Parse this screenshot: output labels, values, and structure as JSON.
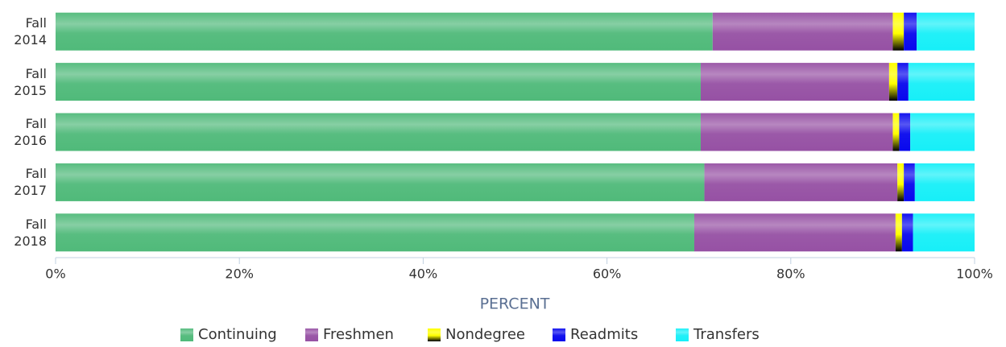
{
  "chart_data": {
    "type": "stacked-bar-horizontal",
    "categories": [
      "Fall 2014",
      "Fall 2015",
      "Fall 2016",
      "Fall 2017",
      "Fall 2018"
    ],
    "series": [
      {
        "name": "Continuing",
        "color": "#58bd80",
        "values": [
          71.5,
          70.2,
          70.2,
          70.6,
          69.5
        ]
      },
      {
        "name": "Freshmen",
        "color": "#9b59a8",
        "values": [
          19.6,
          20.5,
          20.9,
          21.0,
          21.9
        ]
      },
      {
        "name": "Nondegree",
        "color": "#ffff00",
        "values": [
          1.2,
          0.9,
          0.7,
          0.7,
          0.7
        ]
      },
      {
        "name": "Readmits",
        "color": "#1414ee",
        "values": [
          1.4,
          1.2,
          1.2,
          1.2,
          1.2
        ]
      },
      {
        "name": "Transfers",
        "color": "#22f0f8",
        "values": [
          6.3,
          7.2,
          7.0,
          6.5,
          6.7
        ]
      }
    ],
    "x_label": "PERCENT",
    "xlim": [
      0,
      100
    ],
    "xticks": [
      {
        "value": 0,
        "label": "0%"
      },
      {
        "value": 20,
        "label": "20%"
      },
      {
        "value": 40,
        "label": "40%"
      },
      {
        "value": 60,
        "label": "60%"
      },
      {
        "value": 80,
        "label": "80%"
      },
      {
        "value": 100,
        "label": "100%"
      }
    ],
    "legend": "bottom"
  }
}
